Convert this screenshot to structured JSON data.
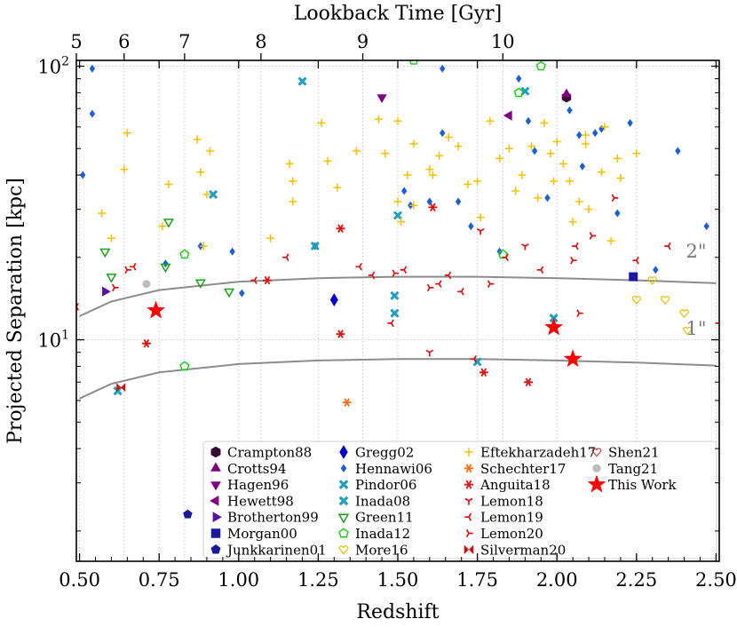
{
  "chart_data": {
    "type": "scatter",
    "xlabel": "Redshift",
    "ylabel": "Projected Separation [kpc]",
    "top_xlabel": "Lookback Time [Gyr]",
    "xlim": [
      0.49,
      2.51
    ],
    "ylim": [
      1.55,
      105
    ],
    "y_scale": "log",
    "grid": true,
    "legend_position": "lower-right",
    "x_ticks": [
      "0.50",
      "0.75",
      "1.00",
      "1.25",
      "1.50",
      "1.75",
      "2.00",
      "2.25",
      "2.50"
    ],
    "y_ticks": [
      "10^1",
      "10^2"
    ],
    "top_ticks": [
      {
        "label": "5",
        "z": 0.49
      },
      {
        "label": "6",
        "z": 0.64
      },
      {
        "label": "7",
        "z": 0.83
      },
      {
        "label": "8",
        "z": 1.07
      },
      {
        "label": "9",
        "z": 1.39
      },
      {
        "label": "10",
        "z": 1.83
      }
    ],
    "curves": [
      {
        "label": "2\"",
        "points": [
          [
            0.5,
            12.2
          ],
          [
            0.6,
            13.8
          ],
          [
            0.75,
            15.2
          ],
          [
            1.0,
            16.3
          ],
          [
            1.25,
            16.8
          ],
          [
            1.5,
            17.0
          ],
          [
            1.75,
            17.0
          ],
          [
            2.0,
            16.8
          ],
          [
            2.25,
            16.5
          ],
          [
            2.5,
            16.1
          ]
        ]
      },
      {
        "label": "1\"",
        "points": [
          [
            0.5,
            6.1
          ],
          [
            0.6,
            6.9
          ],
          [
            0.75,
            7.6
          ],
          [
            1.0,
            8.15
          ],
          [
            1.25,
            8.4
          ],
          [
            1.5,
            8.5
          ],
          [
            1.75,
            8.5
          ],
          [
            2.0,
            8.4
          ],
          [
            2.25,
            8.25
          ],
          [
            2.5,
            8.05
          ]
        ]
      }
    ],
    "series": [
      {
        "name": "Crampton88",
        "marker": "hexagon",
        "color": "#3a0b30",
        "points": [
          [
            2.03,
            77
          ]
        ]
      },
      {
        "name": "Crotts94",
        "marker": "triangle-up",
        "color": "#800080",
        "points": [
          [
            2.03,
            79
          ]
        ]
      },
      {
        "name": "Hagen96",
        "marker": "triangle-down",
        "color": "#800080",
        "points": [
          [
            1.45,
            77
          ]
        ]
      },
      {
        "name": "Hewett98",
        "marker": "triangle-left",
        "color": "#800080",
        "points": [
          [
            1.85,
            66
          ]
        ]
      },
      {
        "name": "Brotherton99",
        "marker": "triangle-right",
        "color": "#5a10a0",
        "points": [
          [
            0.58,
            15
          ]
        ]
      },
      {
        "name": "Morgan00",
        "marker": "square",
        "color": "#1a1aa0",
        "points": [
          [
            2.24,
            17
          ]
        ]
      },
      {
        "name": "Junkkarinen01",
        "marker": "pentagon",
        "color": "#1a1aa0",
        "points": [
          [
            0.84,
            2.3
          ]
        ]
      },
      {
        "name": "Gregg02",
        "marker": "diamond",
        "color": "#0000cc",
        "points": [
          [
            1.3,
            14
          ]
        ]
      },
      {
        "name": "Hennawi06",
        "marker": "small-diamond",
        "color": "#1a5fd6",
        "points": [
          [
            0.51,
            40
          ],
          [
            0.54,
            98
          ],
          [
            0.54,
            67
          ],
          [
            0.77,
            19
          ],
          [
            0.88,
            22
          ],
          [
            0.98,
            21
          ],
          [
            1.01,
            14.8
          ],
          [
            1.24,
            22
          ],
          [
            1.52,
            35
          ],
          [
            1.54,
            31
          ],
          [
            1.6,
            32
          ],
          [
            1.64,
            98
          ],
          [
            1.64,
            57
          ],
          [
            1.69,
            32
          ],
          [
            1.73,
            26
          ],
          [
            1.82,
            21
          ],
          [
            1.88,
            90
          ],
          [
            1.91,
            63
          ],
          [
            1.93,
            49
          ],
          [
            1.97,
            33
          ],
          [
            2.04,
            69
          ],
          [
            2.07,
            56
          ],
          [
            2.08,
            43
          ],
          [
            2.12,
            57
          ],
          [
            2.14,
            59
          ],
          [
            2.19,
            29
          ],
          [
            2.23,
            62
          ],
          [
            2.31,
            18
          ],
          [
            2.38,
            49
          ],
          [
            2.47,
            26
          ]
        ]
      },
      {
        "name": "Pindor06",
        "marker": "x-bold",
        "color": "#1f9fc0",
        "points": [
          [
            0.62,
            6.5
          ],
          [
            1.24,
            22
          ],
          [
            1.49,
            14.5
          ],
          [
            1.49,
            12.5
          ],
          [
            1.75,
            8.3
          ],
          [
            1.99,
            12
          ]
        ]
      },
      {
        "name": "Inada08",
        "marker": "x-bold",
        "color": "#1f9fc0",
        "points": [
          [
            0.92,
            34
          ],
          [
            1.2,
            88
          ],
          [
            1.5,
            28.5
          ],
          [
            1.9,
            81
          ]
        ]
      },
      {
        "name": "Green11",
        "marker": "triangle-down-open",
        "color": "#1aa01a",
        "points": [
          [
            0.58,
            21
          ],
          [
            0.6,
            17
          ],
          [
            0.77,
            18.5
          ],
          [
            0.78,
            27
          ],
          [
            0.88,
            16.2
          ],
          [
            0.97,
            15
          ]
        ]
      },
      {
        "name": "Inada12",
        "marker": "pentagon-open",
        "color": "#1ed01e",
        "points": [
          [
            0.83,
            8
          ],
          [
            0.83,
            20.5
          ],
          [
            1.55,
            105
          ],
          [
            1.83,
            20.5
          ],
          [
            1.88,
            80
          ],
          [
            1.95,
            100
          ]
        ]
      },
      {
        "name": "More16",
        "marker": "heart-open",
        "color": "#e0c000",
        "points": [
          [
            2.25,
            14
          ],
          [
            2.3,
            16.5
          ],
          [
            2.34,
            14
          ],
          [
            2.4,
            12.5
          ],
          [
            2.41,
            10.8
          ]
        ]
      },
      {
        "name": "Eftekharzadeh17",
        "marker": "plus",
        "color": "#f5c000",
        "points": [
          [
            0.57,
            29
          ],
          [
            0.6,
            23.5
          ],
          [
            0.64,
            42
          ],
          [
            0.65,
            57
          ],
          [
            0.76,
            26
          ],
          [
            0.78,
            37
          ],
          [
            0.87,
            54
          ],
          [
            0.88,
            41
          ],
          [
            0.89,
            22
          ],
          [
            0.9,
            34
          ],
          [
            0.91,
            49
          ],
          [
            1.1,
            23.5
          ],
          [
            1.16,
            44
          ],
          [
            1.17,
            38
          ],
          [
            1.17,
            32
          ],
          [
            1.26,
            62
          ],
          [
            1.28,
            45
          ],
          [
            1.31,
            36
          ],
          [
            1.37,
            49
          ],
          [
            1.44,
            64
          ],
          [
            1.46,
            48
          ],
          [
            1.5,
            63
          ],
          [
            1.5,
            32
          ],
          [
            1.51,
            27
          ],
          [
            1.53,
            40
          ],
          [
            1.55,
            52
          ],
          [
            1.55,
            31
          ],
          [
            1.6,
            42
          ],
          [
            1.61,
            40
          ],
          [
            1.63,
            47
          ],
          [
            1.66,
            55
          ],
          [
            1.69,
            51
          ],
          [
            1.72,
            37
          ],
          [
            1.75,
            38
          ],
          [
            1.76,
            28
          ],
          [
            1.79,
            63
          ],
          [
            1.82,
            46
          ],
          [
            1.85,
            50
          ],
          [
            1.87,
            35
          ],
          [
            1.89,
            40
          ],
          [
            1.92,
            51
          ],
          [
            1.94,
            33
          ],
          [
            1.96,
            62
          ],
          [
            1.98,
            48
          ],
          [
            1.99,
            38
          ],
          [
            2.0,
            53
          ],
          [
            2.02,
            44
          ],
          [
            2.04,
            38
          ],
          [
            2.05,
            27
          ],
          [
            2.07,
            32
          ],
          [
            2.09,
            52
          ],
          [
            2.09,
            56
          ],
          [
            2.1,
            30
          ],
          [
            2.14,
            41
          ],
          [
            2.15,
            60
          ],
          [
            2.17,
            23
          ],
          [
            2.19,
            46
          ],
          [
            2.2,
            39
          ],
          [
            2.25,
            48
          ]
        ]
      },
      {
        "name": "Schechter17",
        "marker": "asterisk",
        "color": "#f07010",
        "points": [
          [
            1.34,
            5.9
          ]
        ]
      },
      {
        "name": "Anguita18",
        "marker": "asterisk",
        "color": "#e01010",
        "points": [
          [
            0.71,
            9.7
          ],
          [
            1.09,
            16.5
          ],
          [
            1.32,
            10.5
          ],
          [
            1.32,
            25.5
          ],
          [
            1.61,
            30.5
          ],
          [
            1.77,
            7.6
          ],
          [
            1.91,
            7
          ]
        ]
      },
      {
        "name": "Lemon18",
        "marker": "tri-down",
        "color": "#e01010",
        "points": [
          [
            1.6,
            9
          ],
          [
            1.76,
            25
          ],
          [
            1.9,
            22
          ]
        ]
      },
      {
        "name": "Lemon19",
        "marker": "tri-left",
        "color": "#e01010",
        "points": [
          [
            0.49,
            13.2
          ],
          [
            0.67,
            18.5
          ],
          [
            1.05,
            16.5
          ],
          [
            1.15,
            20
          ],
          [
            1.38,
            18.5
          ],
          [
            1.42,
            17.2
          ],
          [
            1.48,
            11.5
          ],
          [
            1.52,
            18
          ],
          [
            1.63,
            16
          ],
          [
            1.66,
            17.2
          ],
          [
            1.7,
            15
          ],
          [
            1.74,
            8.5
          ],
          [
            1.84,
            20
          ],
          [
            1.95,
            18
          ],
          [
            2.06,
            22
          ],
          [
            2.25,
            19.5
          ],
          [
            2.35,
            22
          ],
          [
            2.51,
            11.5
          ]
        ]
      },
      {
        "name": "Lemon20",
        "marker": "tri-right",
        "color": "#e01010",
        "points": [
          [
            0.61,
            15.5
          ],
          [
            0.65,
            18
          ],
          [
            1.49,
            17.5
          ],
          [
            1.6,
            15.5
          ],
          [
            1.79,
            16
          ],
          [
            2.05,
            19.5
          ],
          [
            2.07,
            12.5
          ],
          [
            2.11,
            24
          ],
          [
            2.18,
            33
          ]
        ]
      },
      {
        "name": "Silverman20",
        "marker": "bowtie",
        "color": "#d01010",
        "points": [
          [
            0.63,
            6.7
          ]
        ]
      },
      {
        "name": "Shen21",
        "marker": "heart-open",
        "color": "#c84040",
        "points": [
          [
            2.16,
            3.8
          ]
        ]
      },
      {
        "name": "Tang21",
        "marker": "circle",
        "color": "#bdbdbd",
        "points": [
          [
            0.71,
            16
          ]
        ]
      },
      {
        "name": "This Work",
        "marker": "star",
        "color": "#ff0000",
        "points": [
          [
            0.74,
            12.8
          ],
          [
            1.99,
            11.1
          ],
          [
            2.05,
            8.5
          ]
        ]
      }
    ]
  }
}
